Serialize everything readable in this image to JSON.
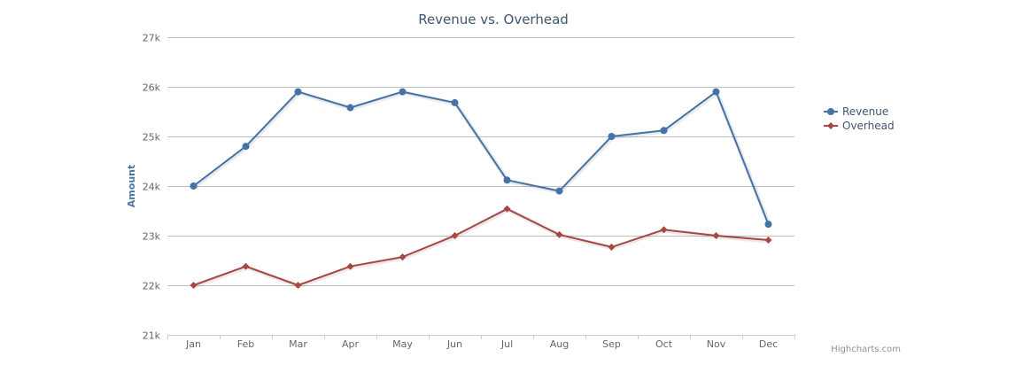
{
  "chart_data": {
    "type": "line",
    "title": "Revenue vs. Overhead",
    "xlabel": "",
    "ylabel": "Amount",
    "categories": [
      "Jan",
      "Feb",
      "Mar",
      "Apr",
      "May",
      "Jun",
      "Jul",
      "Aug",
      "Sep",
      "Oct",
      "Nov",
      "Dec"
    ],
    "ylim": [
      21000,
      27000
    ],
    "yticks": [
      21000,
      22000,
      23000,
      24000,
      25000,
      26000,
      27000
    ],
    "ytick_labels": [
      "21k",
      "22k",
      "23k",
      "24k",
      "25k",
      "26k",
      "27k"
    ],
    "grid": true,
    "legend_position": "right",
    "series": [
      {
        "name": "Revenue",
        "color": "#4572a7",
        "marker": "circle",
        "values": [
          24000,
          24800,
          25900,
          25580,
          25900,
          25680,
          24120,
          23900,
          25000,
          25120,
          25900,
          23230
        ]
      },
      {
        "name": "Overhead",
        "color": "#aa4643",
        "marker": "diamond",
        "values": [
          22000,
          22380,
          22000,
          22380,
          22570,
          23000,
          23540,
          23020,
          22770,
          23120,
          23000,
          22910
        ]
      }
    ]
  },
  "credits": "Highcharts.com"
}
